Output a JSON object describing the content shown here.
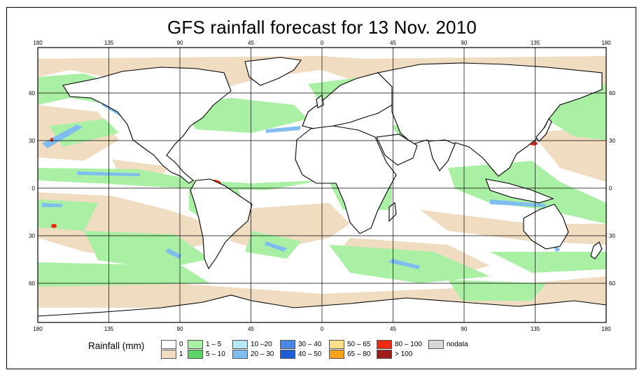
{
  "title": "GFS rainfall forecast for 13 Nov. 2010",
  "map": {
    "projection": "equirectangular",
    "lon_ticks": [
      "180",
      "135",
      "90",
      "45",
      "0",
      "45",
      "90",
      "135",
      "180"
    ],
    "lat_ticks": [
      "60",
      "30",
      "0",
      "30",
      "60"
    ],
    "extent": {
      "lon": [
        -180,
        180
      ],
      "lat": [
        -84,
        84
      ]
    }
  },
  "legend": {
    "title": "Rainfall (mm)",
    "items": [
      {
        "label": "0",
        "color": "#ffffff"
      },
      {
        "label": "1",
        "color": "#f0dcc1"
      },
      {
        "label": "1 – 5",
        "color": "#a9f0a4"
      },
      {
        "label": "5 – 10",
        "color": "#5cd46a"
      },
      {
        "label": "10 –20",
        "color": "#b7e9f7"
      },
      {
        "label": "20 – 30",
        "color": "#7fbdf0"
      },
      {
        "label": "30 – 40",
        "color": "#4a88e8"
      },
      {
        "label": "40 – 50",
        "color": "#1c5ed8"
      },
      {
        "label": "50 – 65",
        "color": "#fbe08a"
      },
      {
        "label": "65 – 80",
        "color": "#f7a21b"
      },
      {
        "label": "80 – 100",
        "color": "#ee2a10"
      },
      {
        "label": "> 100",
        "color": "#9e1c1c"
      },
      {
        "label": "nodata",
        "color": "#d8d8d8"
      }
    ]
  },
  "colors": {
    "land_outline": "#000000",
    "grid": "#000000",
    "light_rain": "#f0dcc1",
    "moderate_rain": "#a9f0a4"
  }
}
